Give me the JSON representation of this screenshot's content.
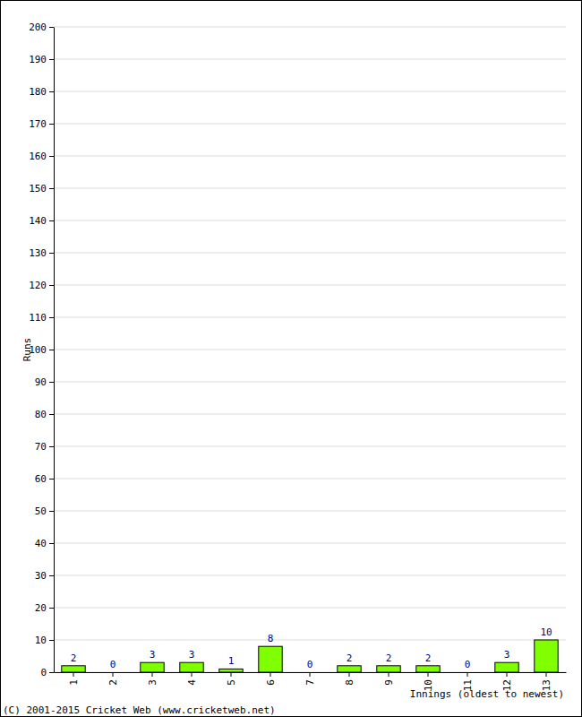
{
  "chart_data": {
    "type": "bar",
    "categories": [
      "1",
      "2",
      "3",
      "4",
      "5",
      "6",
      "7",
      "8",
      "9",
      "10",
      "11",
      "12",
      "13"
    ],
    "values": [
      2,
      0,
      3,
      3,
      1,
      8,
      0,
      2,
      2,
      2,
      0,
      3,
      10
    ],
    "color": "#80ff00",
    "x_label": "Innings (oldest to newest)",
    "y_label": "Runs",
    "annotations": [
      "(C) 2001-2015 Cricket Web (www.cricketweb.net)"
    ],
    "ylim": [
      0,
      200
    ],
    "yticks": [
      0,
      10,
      20,
      30,
      40,
      50,
      60,
      70,
      80,
      90,
      100,
      110,
      120,
      130,
      140,
      150,
      160,
      170,
      180,
      190,
      200
    ],
    "grid": true,
    "data_labels": true
  }
}
